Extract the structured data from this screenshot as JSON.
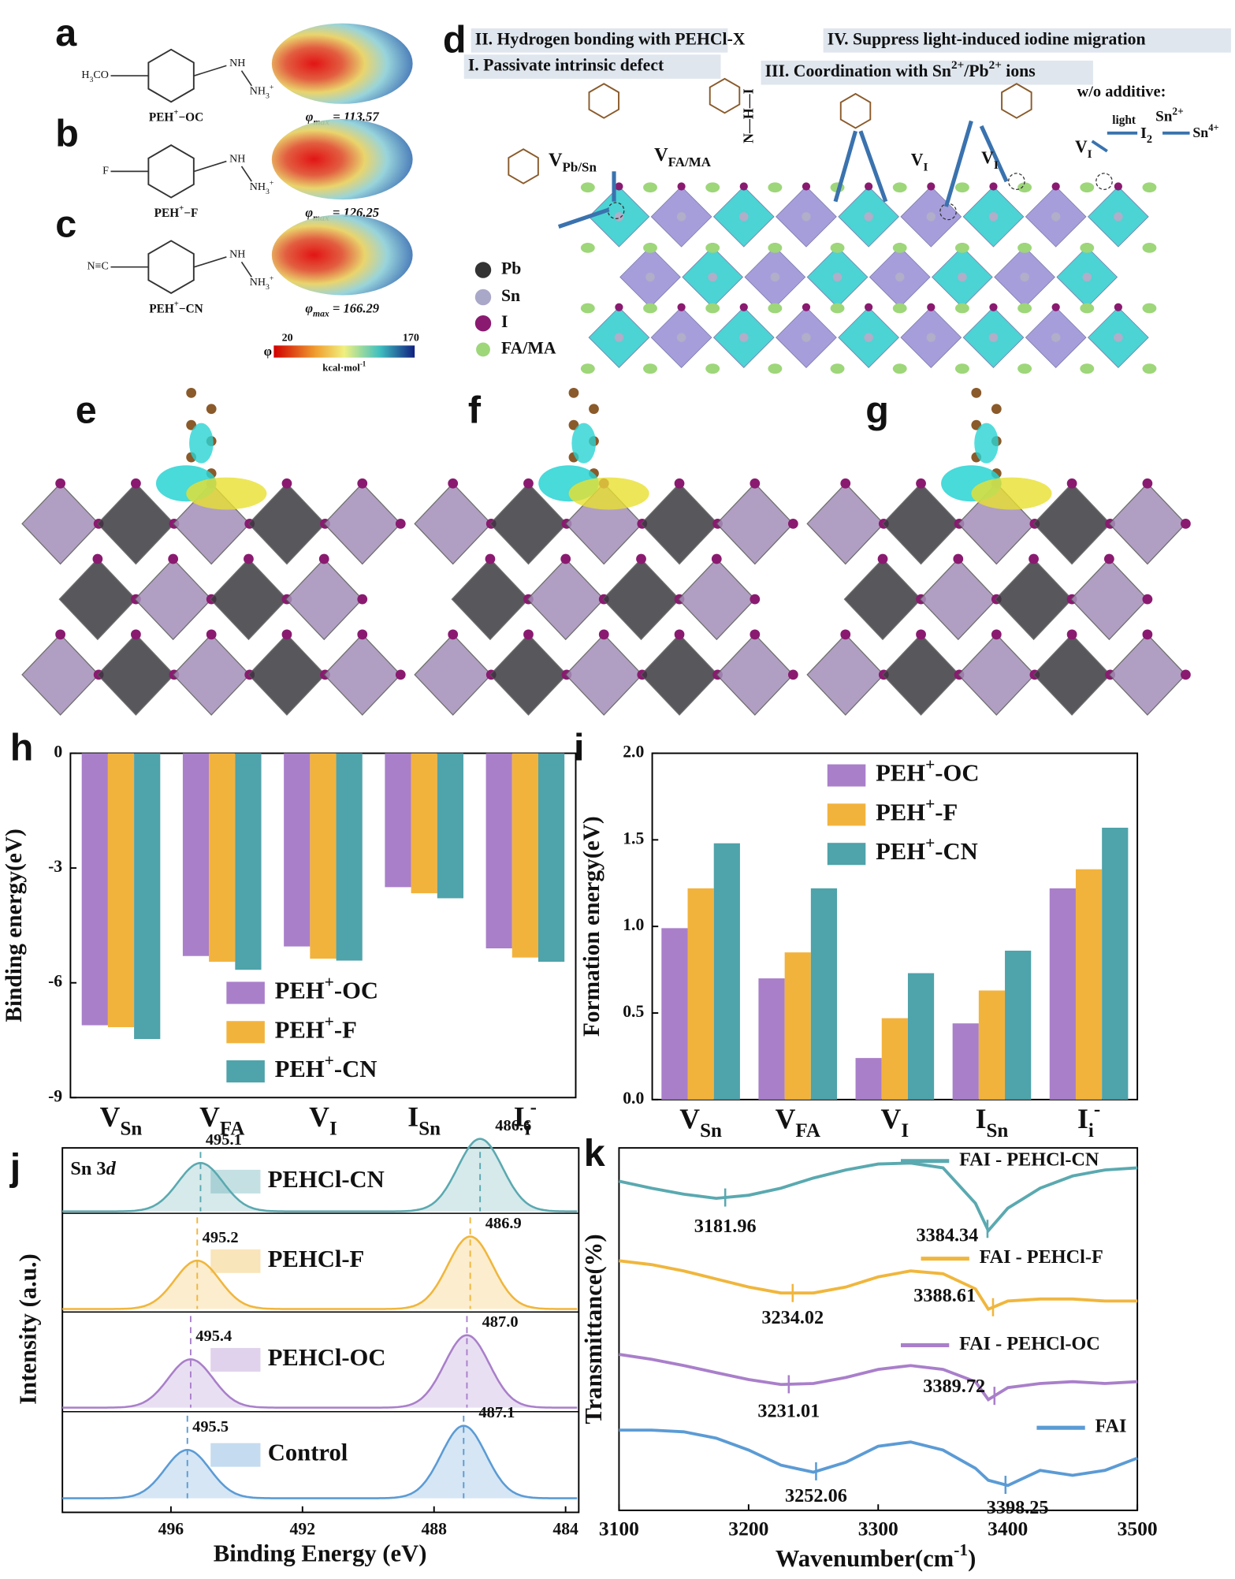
{
  "panels": {
    "labels": [
      "a",
      "b",
      "c",
      "d",
      "e",
      "f",
      "g",
      "h",
      "i",
      "j",
      "k"
    ],
    "molecules": [
      {
        "name": "PEH+−OC",
        "phi": "φmax = 113.57",
        "groups": [
          "H3CO",
          "NH",
          "NH3+"
        ]
      },
      {
        "name": "PEH+−F",
        "phi": "φmax = 126.25",
        "groups": [
          "F",
          "NH",
          "NH3+"
        ]
      },
      {
        "name": "PEH+−CN",
        "phi": "φmax = 166.29",
        "groups": [
          "N≡C",
          "NH",
          "NH3+"
        ]
      }
    ],
    "colorbar": {
      "symbol": "φ",
      "min": 20,
      "max": 170,
      "unit": "kcal·mol-1"
    },
    "d": {
      "steps": [
        "II. Hydrogen bonding with PEHCl-X",
        "IV. Suppress light-induced iodine migration",
        "I. Passivate intrinsic defect",
        "III. Coordination with Sn2+/Pb2+ ions"
      ],
      "without": "w/o additive:",
      "light": "light",
      "vacancies": [
        "VPb/Sn",
        "VFA/MA",
        "VI",
        "VI",
        "VI"
      ],
      "hbond": "N—H—I",
      "reaction": [
        "I2",
        "Sn2+",
        "Sn4+"
      ],
      "legend": [
        "Pb",
        "Sn",
        "I",
        "FA/MA"
      ]
    }
  },
  "chart_data": [
    {
      "type": "bar",
      "ylabel": "Binding energy(eV)",
      "categories": [
        "VSn",
        "VFA",
        "VI",
        "ISn",
        "Ii-"
      ],
      "ylim": [
        -9,
        0
      ],
      "yticks": [
        0,
        -3,
        -6,
        -9
      ],
      "series": [
        {
          "name": "PEH+-OC",
          "color": "#a97fca",
          "values": [
            -7.11,
            -5.3,
            -5.05,
            -3.5,
            -5.1
          ]
        },
        {
          "name": "PEH+-F",
          "color": "#f2b33d",
          "values": [
            -7.16,
            -5.45,
            -5.37,
            -3.66,
            -5.34
          ]
        },
        {
          "name": "PEH+-CN",
          "color": "#4fa3aa",
          "values": [
            -7.47,
            -5.66,
            -5.42,
            -3.79,
            -5.45
          ]
        }
      ]
    },
    {
      "type": "bar",
      "ylabel": "Formation energy(eV)",
      "categories": [
        "VSn",
        "VFA",
        "VI",
        "ISn",
        "Ii-"
      ],
      "ylim": [
        0,
        2
      ],
      "yticks": [
        {
          "value": 0,
          "label": "0.0"
        },
        {
          "value": 0.5,
          "label": "0.5"
        },
        {
          "value": 1,
          "label": "1.0"
        },
        {
          "value": 1.5,
          "label": "1.5"
        },
        {
          "value": 2,
          "label": "2.0"
        }
      ],
      "series": [
        {
          "name": "PEH+-OC",
          "color": "#a97fca",
          "values": [
            0.99,
            0.7,
            0.24,
            0.44,
            1.22
          ]
        },
        {
          "name": "PEH+-F",
          "color": "#f2b33d",
          "values": [
            1.22,
            0.85,
            0.47,
            0.63,
            1.33
          ]
        },
        {
          "name": "PEH+-CN",
          "color": "#4fa3aa",
          "values": [
            1.48,
            1.22,
            0.73,
            0.86,
            1.57
          ]
        }
      ]
    },
    {
      "type": "xps",
      "annotation": "Sn 3d",
      "xlabel": "Binding Energy (eV)",
      "ylabel": "Intensity (a.u.)",
      "xlim": [
        499.3,
        483.6
      ],
      "xticks": [
        496,
        492,
        488,
        484
      ],
      "series": [
        {
          "name": "PEHCl-CN",
          "color": "#5aa9b0",
          "values": [
            495.1,
            486.6
          ],
          "value_labels": [
            "495.1",
            "486.6"
          ]
        },
        {
          "name": "PEHCl-F",
          "color": "#f0b63c",
          "values": [
            495.2,
            486.9
          ],
          "value_labels": [
            "495.2",
            "486.9"
          ]
        },
        {
          "name": "PEHCl-OC",
          "color": "#a97fca",
          "values": [
            495.4,
            487
          ],
          "value_labels": [
            "495.4",
            "487.0"
          ]
        },
        {
          "name": "Control",
          "color": "#5b9bd5",
          "values": [
            495.5,
            487.1
          ],
          "value_labels": [
            "495.5",
            "487.1"
          ]
        }
      ]
    },
    {
      "type": "line",
      "xlabel": "Wavenumber(cm-1)",
      "ylabel": "Transmittance(%)",
      "xlim": [
        3100,
        3500
      ],
      "xticks": [
        3100,
        3200,
        3300,
        3400,
        3500
      ],
      "ylim": [
        -3.4,
        100
      ],
      "x": [
        3100,
        3125,
        3150,
        3175,
        3200,
        3225,
        3250,
        3275,
        3300,
        3325,
        3350,
        3375,
        3385,
        3400,
        3425,
        3450,
        3475,
        3500
      ],
      "series": [
        {
          "name": "FAI - PEHCl-CN",
          "color": "#5aa9b0",
          "peaks": [
            3181.96,
            3384.34
          ],
          "values": [
            90.5,
            88.5,
            86.8,
            85.6,
            86.5,
            88.5,
            91.4,
            93.7,
            95.4,
            95.7,
            94.3,
            84.2,
            76.4,
            82.8,
            88.5,
            92.0,
            93.7,
            94.3
          ]
        },
        {
          "name": "FAI - PEHCl-F",
          "color": "#f0b63c",
          "peaks": [
            3234.02,
            3388.61
          ],
          "values": [
            67.8,
            66.7,
            64.9,
            62.6,
            60.3,
            58.6,
            58.6,
            60.3,
            63.2,
            64.9,
            64.1,
            59.8,
            54.0,
            56.3,
            56.9,
            56.9,
            56.3,
            56.3
          ]
        },
        {
          "name": "FAI - PEHCl-OC",
          "color": "#a97fca",
          "peaks": [
            3231.01,
            3389.72
          ],
          "values": [
            41.1,
            39.7,
            37.9,
            35.9,
            33.9,
            32.5,
            32.8,
            34.5,
            36.8,
            37.9,
            36.8,
            33.3,
            28.2,
            31.6,
            32.8,
            33.3,
            32.8,
            33.3
          ]
        },
        {
          "name": "FAI",
          "color": "#5b9bd5",
          "peaks": [
            3252.06,
            3398.25
          ],
          "values": [
            19.5,
            19.5,
            19.0,
            17.2,
            13.8,
            9.5,
            7.5,
            10.3,
            14.9,
            16.1,
            13.8,
            8.6,
            5.2,
            3.7,
            8.0,
            6.6,
            8.0,
            11.5
          ]
        }
      ]
    }
  ]
}
